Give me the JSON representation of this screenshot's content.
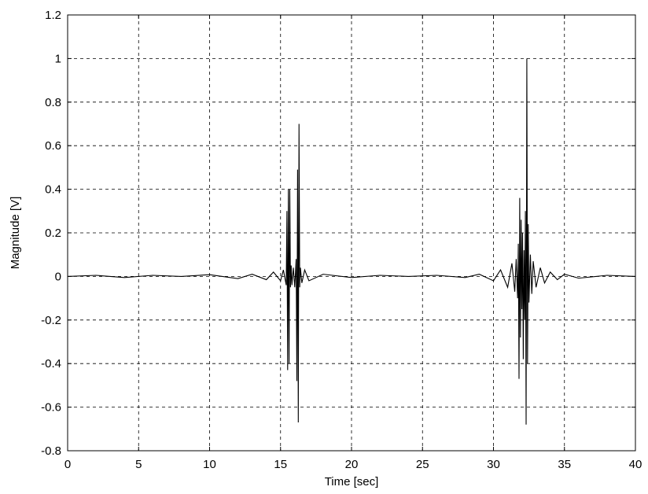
{
  "chart_data": {
    "type": "line",
    "xlabel": "Time [sec]",
    "ylabel": "Magnitude [V]",
    "xlim": [
      0,
      40
    ],
    "ylim": [
      -0.8,
      1.2
    ],
    "xticks": [
      0,
      5,
      10,
      15,
      20,
      25,
      30,
      35,
      40
    ],
    "yticks": [
      -0.8,
      -0.6,
      -0.4,
      -0.2,
      0,
      0.2,
      0.4,
      0.6,
      0.8,
      1,
      1.2
    ],
    "xtick_labels": [
      "0",
      "5",
      "10",
      "15",
      "20",
      "25",
      "30",
      "35",
      "40"
    ],
    "ytick_labels": [
      "-0.8",
      "-0.6",
      "-0.4",
      "-0.2",
      "0",
      "0.2",
      "0.4",
      "0.6",
      "0.8",
      "1",
      "1.2"
    ],
    "grid": true,
    "grid_style": "dashed",
    "line_color": "#000000",
    "series": [
      {
        "x": [
          0,
          2,
          4,
          6,
          8,
          10,
          12,
          13,
          14,
          14.5,
          15,
          15.2,
          15.4,
          15.45,
          15.5,
          15.55,
          15.6,
          15.65,
          15.7,
          15.75,
          15.8,
          15.9,
          16.0,
          16.1,
          16.15,
          16.2,
          16.25,
          16.3,
          16.35,
          16.4,
          16.5,
          16.7,
          17,
          18,
          20,
          22,
          24,
          26,
          28,
          29,
          30,
          30.5,
          31,
          31.3,
          31.5,
          31.6,
          31.7,
          31.75,
          31.8,
          31.85,
          31.9,
          31.95,
          32.0,
          32.05,
          32.1,
          32.15,
          32.2,
          32.25,
          32.3,
          32.35,
          32.4,
          32.45,
          32.5,
          32.6,
          32.7,
          32.8,
          33.0,
          33.3,
          33.6,
          34,
          34.5,
          35,
          36,
          38,
          40
        ],
        "y": [
          0,
          0.005,
          -0.005,
          0.005,
          0,
          0.008,
          -0.01,
          0.01,
          -0.015,
          0.02,
          -0.02,
          0.03,
          -0.04,
          0.3,
          -0.43,
          0.4,
          -0.4,
          0.4,
          -0.05,
          0.05,
          -0.04,
          0.04,
          -0.05,
          0.08,
          -0.48,
          0.49,
          -0.67,
          0.7,
          -0.05,
          0.04,
          -0.03,
          0.03,
          -0.02,
          0.01,
          -0.005,
          0.005,
          0,
          0.005,
          -0.005,
          0.01,
          -0.02,
          0.03,
          -0.05,
          0.06,
          -0.07,
          0.08,
          -0.1,
          0.15,
          -0.47,
          0.36,
          -0.28,
          0.26,
          -0.15,
          0.2,
          -0.38,
          0.12,
          -0.2,
          0.3,
          -0.68,
          1.0,
          -0.4,
          0.24,
          -0.12,
          0.1,
          -0.08,
          0.07,
          -0.05,
          0.04,
          -0.03,
          0.02,
          -0.015,
          0.01,
          -0.008,
          0.005,
          0
        ]
      }
    ]
  }
}
